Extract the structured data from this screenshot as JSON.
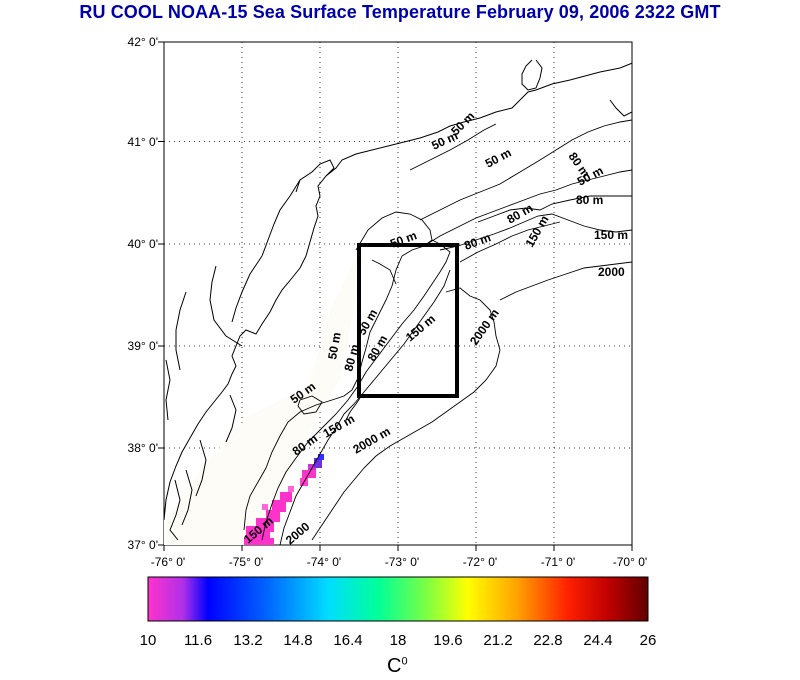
{
  "title": "RU COOL  NOAA-15 Sea Surface Temperature February 09, 2006 2322 GMT",
  "lat_labels": [
    "42° 0'",
    "41° 0'",
    "40° 0'",
    "39° 0'",
    "38° 0'",
    "37° 0'"
  ],
  "lon_labels": [
    "-76° 0'",
    "-75° 0'",
    "-74° 0'",
    "-73° 0'",
    "-72° 0'",
    "-71° 0'",
    "-70° 0'"
  ],
  "contour_labels": {
    "c1": "50 m",
    "c2": "50 m",
    "c3": "80 m",
    "c4": "80 m",
    "c5": "150 m",
    "c6": "2000",
    "c7": "80 m",
    "c8": "150 m",
    "c9": "2000 m",
    "c10": "50 m",
    "c11": "50 m",
    "c12": "80 m",
    "c13": "150 m",
    "c14": "80 m",
    "c15": "150 m",
    "c16": "2000 m",
    "c17": "150 m",
    "c18": "2000",
    "c19": "50 m",
    "c20": "50 m",
    "c21": "50 m",
    "c22": "80 m"
  },
  "colorbar": {
    "min": 10,
    "max": 26,
    "tick_labels": [
      "10",
      "11.6",
      "13.2",
      "14.8",
      "16.4",
      "18",
      "19.6",
      "21.2",
      "22.8",
      "24.4",
      "26"
    ],
    "unit_base": "C",
    "unit_sup": "0",
    "colors": [
      "#ff33cc",
      "#0000ff",
      "#00a0ff",
      "#00ffff",
      "#00ff80",
      "#ffff00",
      "#ff8000",
      "#ff0000",
      "#600000"
    ]
  },
  "study_box": {
    "lon_min": -73.5,
    "lon_max": -72.5,
    "lat_min": 38.5,
    "lat_max": 40.0
  }
}
